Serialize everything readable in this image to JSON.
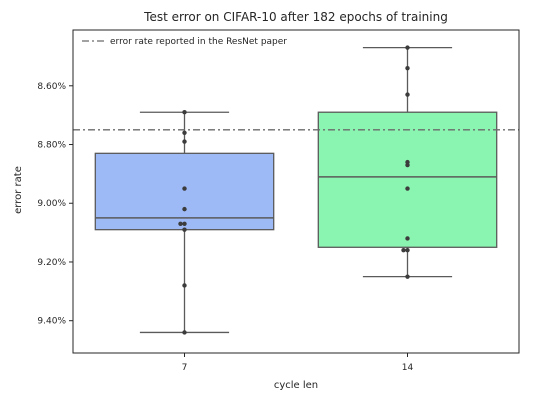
{
  "chart_data": {
    "type": "box",
    "title": "Test error on CIFAR-10 after 182 epochs of training",
    "xlabel": "cycle len",
    "ylabel": "error rate",
    "y_inverted": true,
    "ylim": [
      8.41,
      9.51
    ],
    "y_ticks": [
      8.6,
      8.8,
      9.0,
      9.2,
      9.4
    ],
    "y_tick_labels": [
      "8.60%",
      "8.80%",
      "9.00%",
      "9.20%",
      "9.40%"
    ],
    "grid": false,
    "legend_position": "top-left",
    "reference_line": {
      "label": "error rate reported in the ResNet paper",
      "value": 8.75,
      "color": "#6b6b6b"
    },
    "categories": [
      "7",
      "14"
    ],
    "boxes": [
      {
        "category": "7",
        "color": "#9db9f6",
        "whisker_low": 8.69,
        "q1": 8.83,
        "median": 9.05,
        "q3": 9.09,
        "whisker_high": 9.44,
        "points": [
          8.69,
          8.76,
          8.79,
          8.95,
          9.02,
          9.07,
          9.07,
          9.09,
          9.28,
          9.44
        ]
      },
      {
        "category": "14",
        "color": "#8af5b1",
        "whisker_low": 8.47,
        "q1": 8.69,
        "median": 8.91,
        "q3": 9.15,
        "whisker_high": 9.25,
        "points": [
          8.47,
          8.54,
          8.63,
          8.86,
          8.87,
          8.95,
          9.12,
          9.16,
          9.16,
          9.25
        ]
      }
    ]
  }
}
